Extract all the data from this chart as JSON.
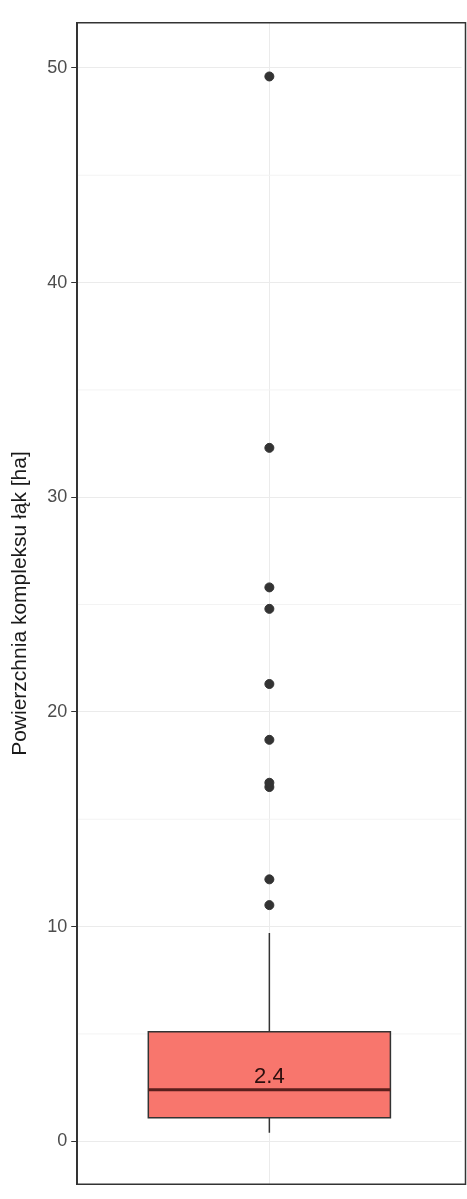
{
  "chart_data": {
    "type": "box",
    "ylabel": "Powierzchnia kompleksu łąk [ha]",
    "categories": [
      null
    ],
    "series": [
      {
        "color": "#f8766d",
        "boxes": [
          {
            "low": 0.4,
            "q1": 1.1,
            "median": 2.4,
            "q3": 5.1,
            "high": 9.7,
            "outliers": [
              11.0,
              12.2,
              16.5,
              16.7,
              18.7,
              21.3,
              24.8,
              25.8,
              32.3,
              49.6
            ]
          }
        ]
      }
    ],
    "ylim": [
      -2,
      52.1
    ],
    "yticks": [
      0,
      10,
      20,
      30,
      40,
      50
    ],
    "grid": true,
    "tick_labels": "y",
    "annotations": [
      {
        "text": "2.4",
        "y": 2.4
      }
    ]
  }
}
